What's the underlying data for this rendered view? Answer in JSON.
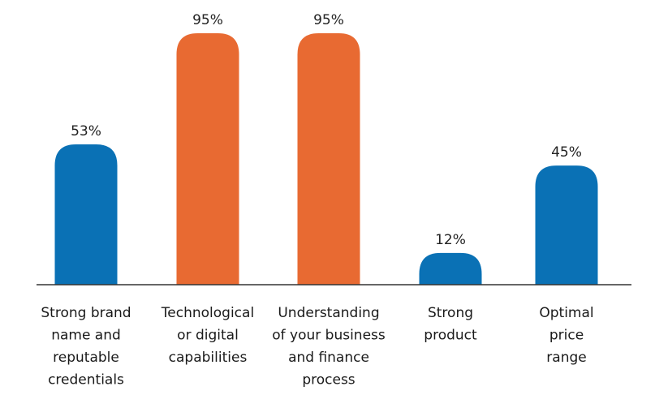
{
  "chart_data": {
    "type": "bar",
    "title": "",
    "xlabel": "",
    "ylabel": "",
    "ylim": [
      0,
      100
    ],
    "value_suffix": "%",
    "categories": [
      [
        "Strong brand",
        "name and",
        "reputable",
        "credentials"
      ],
      [
        "Technological",
        "or digital",
        "capabilities"
      ],
      [
        "Understanding",
        "of your business",
        "and finance",
        "process"
      ],
      [
        "Strong",
        "product"
      ],
      [
        "Optimal",
        "price",
        "range"
      ]
    ],
    "values": [
      53,
      95,
      95,
      12,
      45
    ],
    "value_labels": [
      "53%",
      "95%",
      "95%",
      "12%",
      "45%"
    ],
    "highlighted": [
      false,
      true,
      true,
      false,
      false
    ]
  },
  "colors": {
    "bar_default": "#0a71b5",
    "bar_highlight": "#e86a32",
    "axis": "#333333"
  }
}
